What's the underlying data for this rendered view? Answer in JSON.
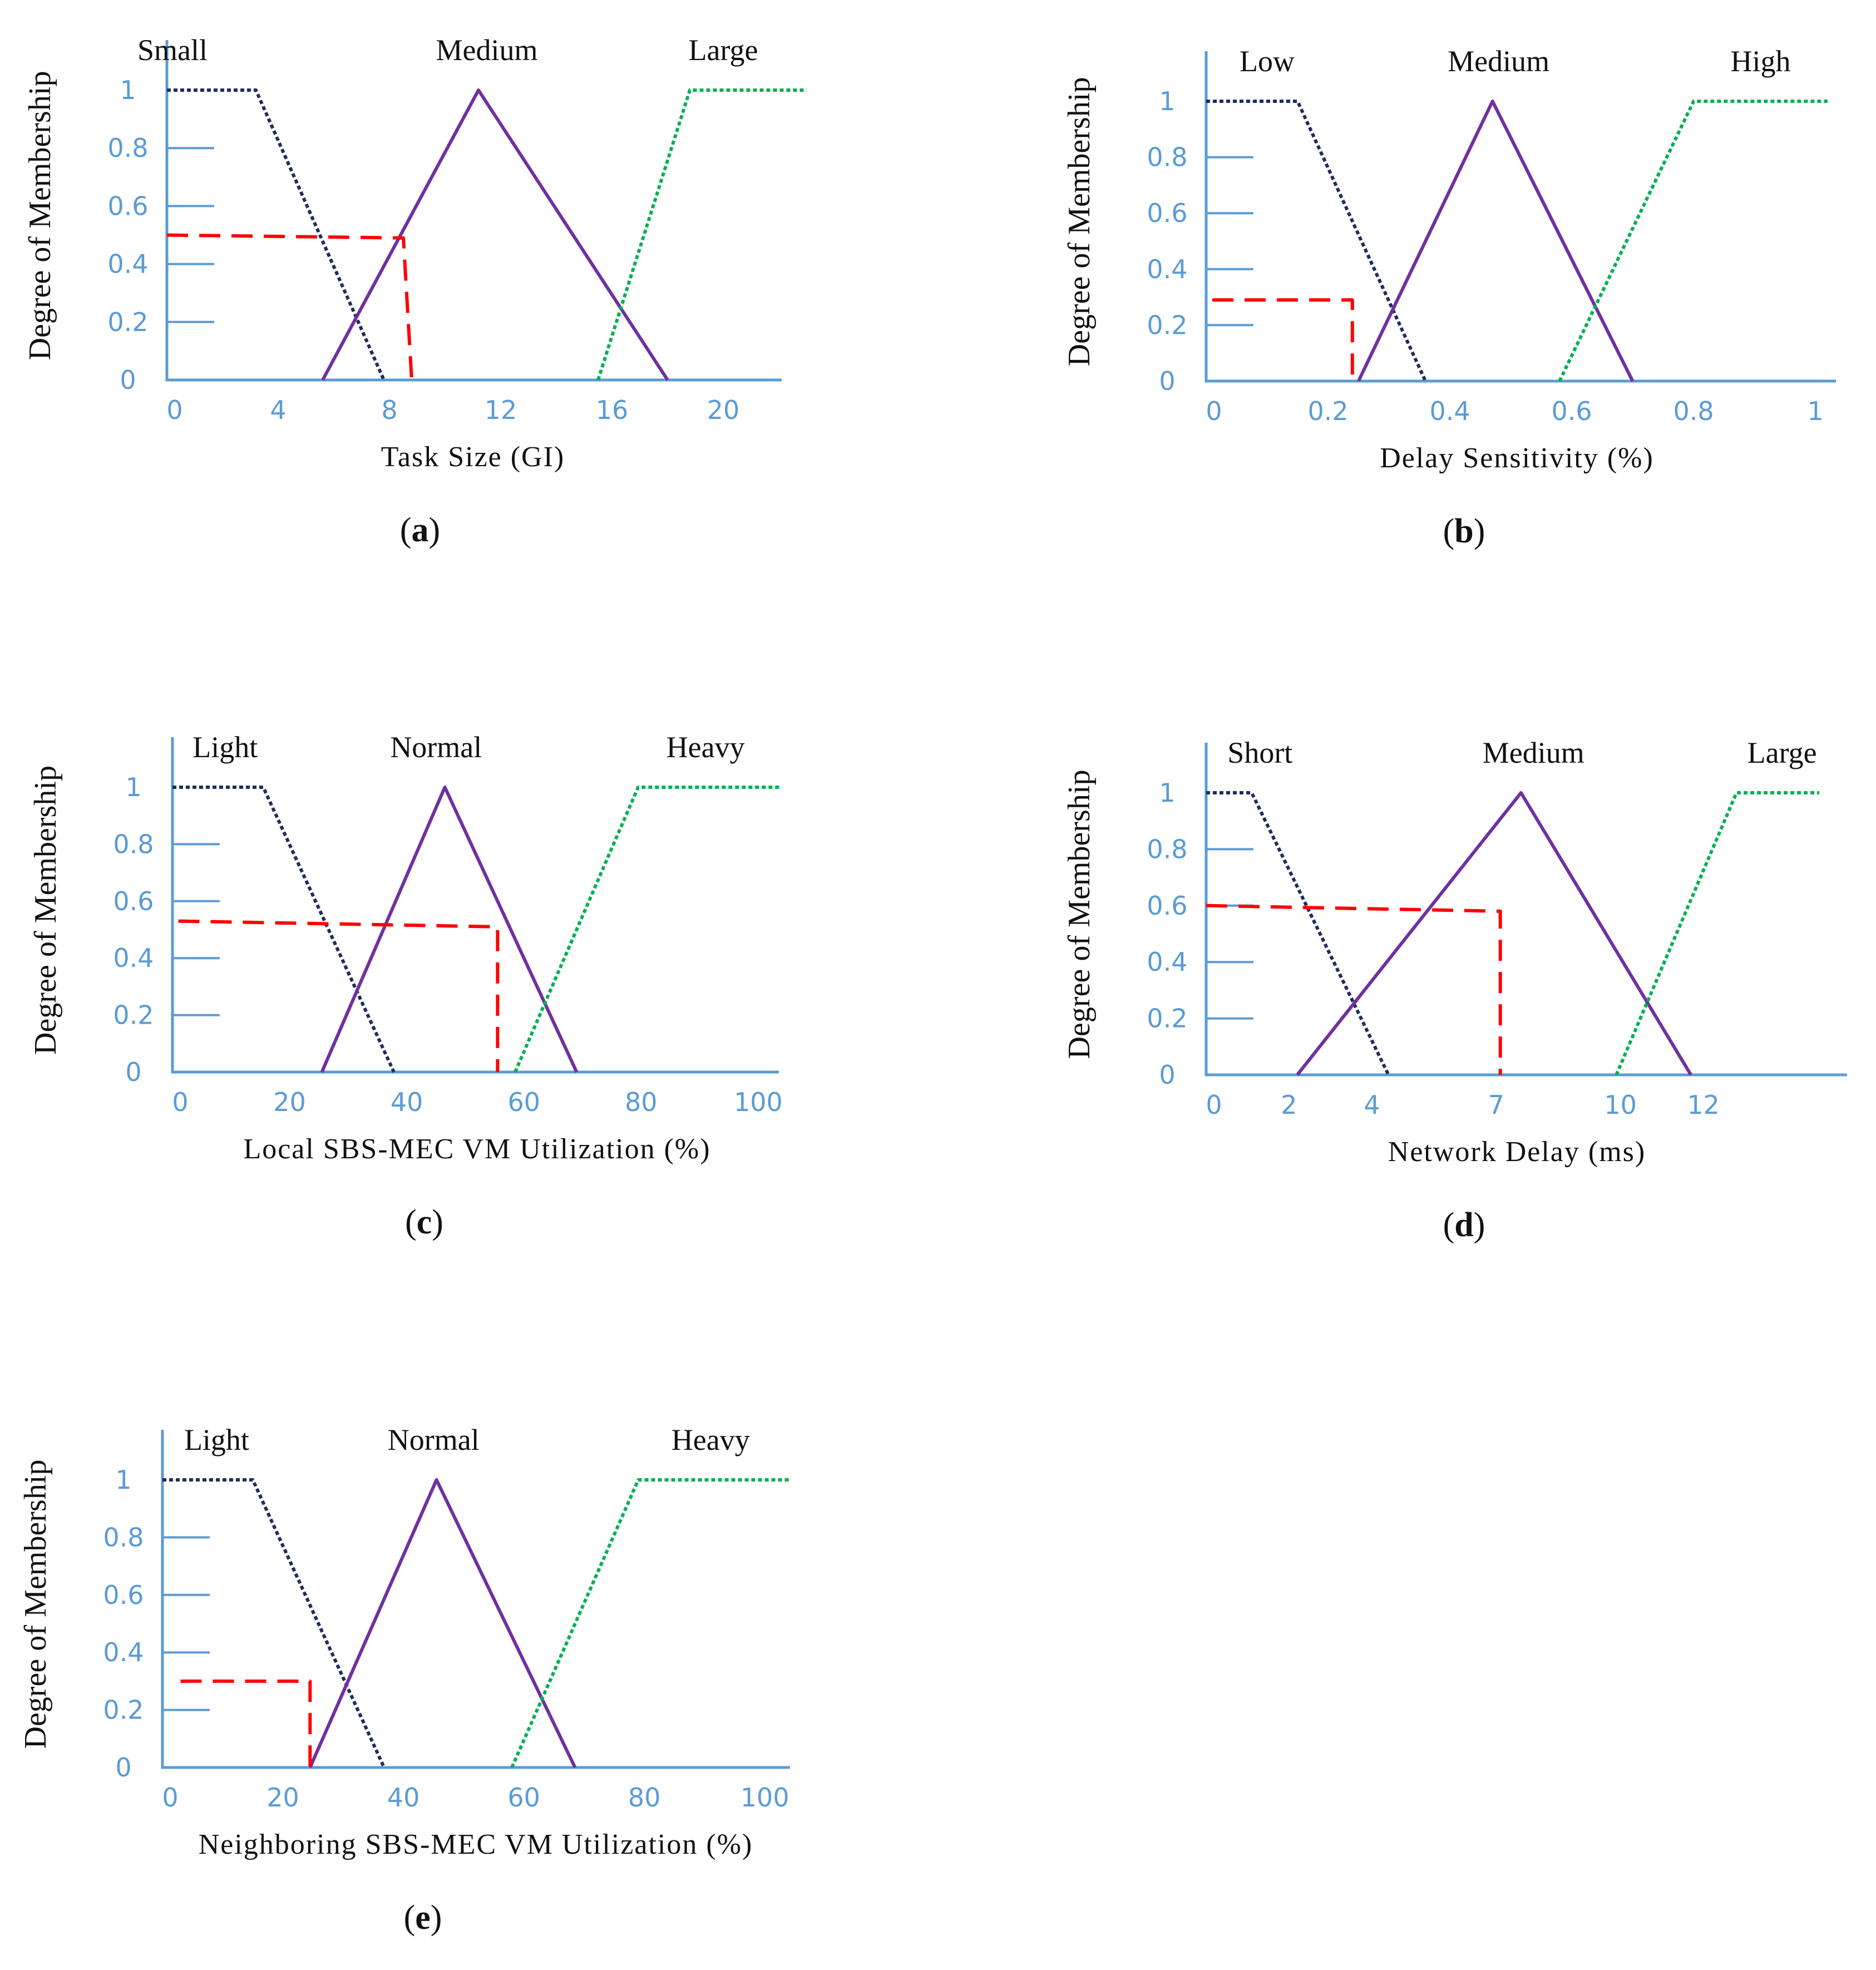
{
  "figure_colors": {
    "axis": "#5b9bd5",
    "text": "#111111",
    "low_series": "#1f2d5a",
    "medium_series": "#7030a0",
    "high_series": "#00b050",
    "input_marker": "#ff0000"
  },
  "chart_data": [
    {
      "type": "line",
      "panel_label": "a",
      "xlabel": "Task Size (GI)",
      "ylabel": "Degree of Membership",
      "xlim": [
        0,
        22
      ],
      "ylim": [
        0,
        1.1
      ],
      "xticks": [
        0,
        4,
        8,
        12,
        16,
        20
      ],
      "xtick_labels": [
        "0",
        "4",
        "8",
        "12",
        "16",
        "20"
      ],
      "yticks": [
        0,
        0.2,
        0.4,
        0.6,
        0.8,
        1
      ],
      "ytick_labels": [
        "0",
        "0.2",
        "0.4",
        "0.6",
        "0.8",
        "1"
      ],
      "series": [
        {
          "name": "Small",
          "style": "dotted",
          "color": "#1f2d5a",
          "points": [
            [
              0,
              1
            ],
            [
              3.2,
              1
            ],
            [
              7.8,
              0
            ]
          ]
        },
        {
          "name": "Medium",
          "style": "solid",
          "color": "#7030a0",
          "points": [
            [
              5.6,
              0
            ],
            [
              11.2,
              1
            ],
            [
              18,
              0
            ]
          ]
        },
        {
          "name": "Large",
          "style": "dotted",
          "color": "#00b050",
          "points": [
            [
              15.5,
              0
            ],
            [
              18.8,
              1
            ],
            [
              23,
              1
            ]
          ]
        },
        {
          "name": "input",
          "style": "dashed",
          "color": "#ff0000",
          "points": [
            [
              0,
              0.5
            ],
            [
              8.5,
              0.49
            ],
            [
              8.8,
              0
            ]
          ]
        }
      ],
      "label_x": [
        0.2,
        11.5,
        20
      ]
    },
    {
      "type": "line",
      "panel_label": "b",
      "xlabel": "Delay Sensitivity (%)",
      "ylabel": "Degree of Membership",
      "xlim": [
        0,
        1.02
      ],
      "ylim": [
        0,
        1.1
      ],
      "xticks": [
        0,
        0.2,
        0.4,
        0.6,
        0.8,
        1
      ],
      "xtick_labels": [
        "0",
        "0.2",
        "0.4",
        "0.6",
        "0.8",
        "1"
      ],
      "yticks": [
        0,
        0.2,
        0.4,
        0.6,
        0.8,
        1
      ],
      "ytick_labels": [
        "0",
        "0.2",
        "0.4",
        "0.6",
        "0.8",
        "1"
      ],
      "series": [
        {
          "name": "Low",
          "style": "dotted",
          "color": "#1f2d5a",
          "points": [
            [
              0,
              1
            ],
            [
              0.15,
              1
            ],
            [
              0.36,
              0
            ]
          ]
        },
        {
          "name": "Medium",
          "style": "solid",
          "color": "#7030a0",
          "points": [
            [
              0.25,
              0
            ],
            [
              0.47,
              1
            ],
            [
              0.7,
              0
            ]
          ]
        },
        {
          "name": "High",
          "style": "dotted",
          "color": "#00b050",
          "points": [
            [
              0.58,
              0
            ],
            [
              0.8,
              1
            ],
            [
              1.02,
              1
            ]
          ]
        },
        {
          "name": "input",
          "style": "dashed",
          "color": "#ff0000",
          "points": [
            [
              0.01,
              0.29
            ],
            [
              0.24,
              0.29
            ],
            [
              0.24,
              0
            ]
          ]
        }
      ],
      "label_x": [
        0.1,
        0.48,
        0.91
      ]
    },
    {
      "type": "line",
      "panel_label": "c",
      "xlabel": "Local SBS-MEC VM Utilization (%)",
      "ylabel": "Degree of Membership",
      "xlim": [
        0,
        104
      ],
      "ylim": [
        0,
        1.1
      ],
      "xticks": [
        0,
        20,
        40,
        60,
        80,
        100
      ],
      "xtick_labels": [
        "0",
        "20",
        "40",
        "60",
        "80",
        "100"
      ],
      "yticks": [
        0,
        0.2,
        0.4,
        0.6,
        0.8,
        1
      ],
      "ytick_labels": [
        "0",
        "0.2",
        "0.4",
        "0.6",
        "0.8",
        "1"
      ],
      "series": [
        {
          "name": "Light",
          "style": "dotted",
          "color": "#1f2d5a",
          "points": [
            [
              0,
              1
            ],
            [
              15.5,
              1
            ],
            [
              37.8,
              0
            ]
          ]
        },
        {
          "name": "Normal",
          "style": "solid",
          "color": "#7030a0",
          "points": [
            [
              25.5,
              0
            ],
            [
              46.5,
              1
            ],
            [
              69,
              0
            ]
          ]
        },
        {
          "name": "Heavy",
          "style": "dotted",
          "color": "#00b050",
          "points": [
            [
              58.5,
              0
            ],
            [
              79.5,
              1
            ],
            [
              104,
              1
            ]
          ]
        },
        {
          "name": "input",
          "style": "dashed",
          "color": "#ff0000",
          "points": [
            [
              1,
              0.53
            ],
            [
              55.5,
              0.51
            ],
            [
              55.5,
              0
            ]
          ]
        }
      ],
      "label_x": [
        9,
        45,
        91
      ]
    },
    {
      "type": "line",
      "panel_label": "d",
      "xlabel": "Network Delay (ms)",
      "ylabel": "Degree of Membership",
      "xlim": [
        0,
        15
      ],
      "ylim": [
        0,
        1.1
      ],
      "xticks": [
        0,
        2,
        4,
        7,
        10,
        12
      ],
      "xtick_labels": [
        "0",
        "2",
        "4",
        "7",
        "10",
        "12"
      ],
      "yticks": [
        0,
        0.2,
        0.4,
        0.6,
        0.8,
        1
      ],
      "ytick_labels": [
        "0",
        "0.2",
        "0.4",
        "0.6",
        "0.8",
        "1"
      ],
      "series": [
        {
          "name": "Short",
          "style": "dotted",
          "color": "#1f2d5a",
          "points": [
            [
              0,
              1
            ],
            [
              1.1,
              1
            ],
            [
              4.4,
              0
            ]
          ]
        },
        {
          "name": "Medium",
          "style": "solid",
          "color": "#7030a0",
          "points": [
            [
              2.2,
              0
            ],
            [
              7.6,
              1
            ],
            [
              11.7,
              0
            ]
          ]
        },
        {
          "name": "Large",
          "style": "dotted",
          "color": "#00b050",
          "points": [
            [
              9.9,
              0
            ],
            [
              12.8,
              1
            ],
            [
              14.8,
              1
            ]
          ]
        },
        {
          "name": "input",
          "style": "dashed",
          "color": "#ff0000",
          "points": [
            [
              0,
              0.6
            ],
            [
              7.1,
              0.58
            ],
            [
              7.1,
              0
            ]
          ]
        }
      ],
      "label_x": [
        1.3,
        7.9,
        13.9
      ]
    },
    {
      "type": "line",
      "panel_label": "e",
      "xlabel": "Neighboring SBS-MEC VM Utilization (%)",
      "ylabel": "Degree of Membership",
      "xlim": [
        0,
        104
      ],
      "ylim": [
        0,
        1.1
      ],
      "xticks": [
        0,
        20,
        40,
        60,
        80,
        100
      ],
      "xtick_labels": [
        "0",
        "20",
        "40",
        "60",
        "80",
        "100"
      ],
      "yticks": [
        0,
        0.2,
        0.4,
        0.6,
        0.8,
        1
      ],
      "ytick_labels": [
        "0",
        "0.2",
        "0.4",
        "0.6",
        "0.8",
        "1"
      ],
      "series": [
        {
          "name": "Light",
          "style": "dotted",
          "color": "#1f2d5a",
          "points": [
            [
              0,
              1
            ],
            [
              15,
              1
            ],
            [
              36.8,
              0
            ]
          ]
        },
        {
          "name": "Normal",
          "style": "solid",
          "color": "#7030a0",
          "points": [
            [
              24.5,
              0
            ],
            [
              45.5,
              1
            ],
            [
              68.5,
              0
            ]
          ]
        },
        {
          "name": "Heavy",
          "style": "dotted",
          "color": "#00b050",
          "points": [
            [
              58,
              0
            ],
            [
              79,
              1
            ],
            [
              104,
              1
            ]
          ]
        },
        {
          "name": "input",
          "style": "dashed",
          "color": "#ff0000",
          "points": [
            [
              3,
              0.3
            ],
            [
              24.5,
              0.3
            ],
            [
              24.5,
              0
            ]
          ]
        }
      ],
      "label_x": [
        9,
        45,
        91
      ]
    }
  ]
}
